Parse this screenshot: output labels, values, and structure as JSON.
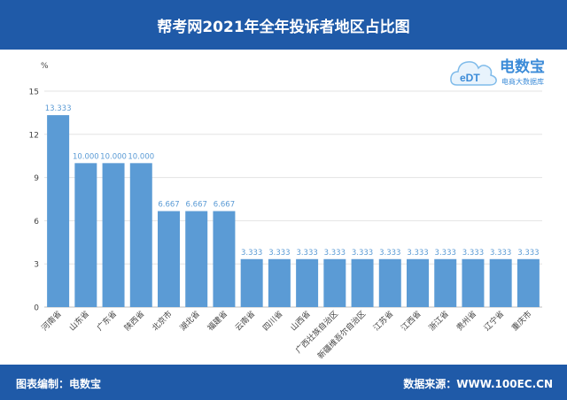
{
  "header": {
    "title": "帮考网2021年全年投诉者地区占比图"
  },
  "logo": {
    "brand": "电数宝",
    "tagline": "电商大数据库",
    "badge": "eDT"
  },
  "footer": {
    "left": "图表编制：电数宝",
    "right": "数据来源：WWW.100EC.CN"
  },
  "colors": {
    "header_bg": "#1f5aa8",
    "bar": "#5b9bd5",
    "label": "#5b9bd5"
  },
  "chart_data": {
    "type": "bar",
    "title": "帮考网2021年全年投诉者地区占比图",
    "ylabel": "%",
    "ylim": [
      0,
      15
    ],
    "yticks": [
      "0",
      "3",
      "6",
      "9",
      "12",
      "15"
    ],
    "grid": true,
    "categories": [
      "河南省",
      "山东省",
      "广东省",
      "陕西省",
      "北京市",
      "湖北省",
      "福建省",
      "云南省",
      "四川省",
      "山西省",
      "广西壮族自治区",
      "新疆维吾尔自治区",
      "江苏省",
      "江西省",
      "浙江省",
      "贵州省",
      "辽宁省",
      "重庆市"
    ],
    "values": [
      13.333,
      10.0,
      10.0,
      10.0,
      6.667,
      6.667,
      6.667,
      3.333,
      3.333,
      3.333,
      3.333,
      3.333,
      3.333,
      3.333,
      3.333,
      3.333,
      3.333,
      3.333
    ],
    "value_labels": [
      "13.333",
      "10.000",
      "10.000",
      "10.000",
      "6.667",
      "6.667",
      "6.667",
      "3.333",
      "3.333",
      "3.333",
      "3.333",
      "3.333",
      "3.333",
      "3.333",
      "3.333",
      "3.333",
      "3.333",
      "3.333"
    ]
  }
}
